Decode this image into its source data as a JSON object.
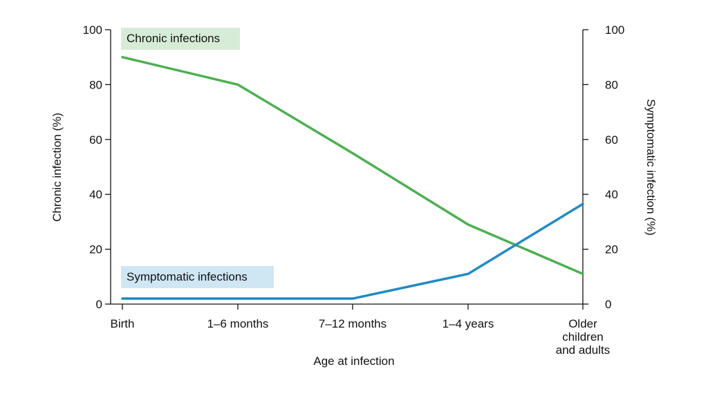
{
  "chart_data": {
    "type": "line",
    "categories": [
      "Birth",
      "1–6 months",
      "7–12 months",
      "1–4 years",
      "Older children and adults"
    ],
    "category_lines": [
      [
        "Birth"
      ],
      [
        "1–6 months"
      ],
      [
        "7–12 months"
      ],
      [
        "1–4 years"
      ],
      [
        "Older",
        "children",
        "and adults"
      ]
    ],
    "xlabel": "Age at infection",
    "ylabel_left": "Chronic infection (%)",
    "ylabel_right": "Symptomatic infection (%)",
    "ylim": [
      0,
      100
    ],
    "yticks": [
      0,
      20,
      40,
      60,
      80,
      100
    ],
    "grid": false,
    "series": [
      {
        "name": "Chronic infections",
        "axis": "left",
        "color": "#4caf50",
        "label_bg": "#d7ecd6",
        "label_position": "top-left",
        "values": [
          90,
          80,
          55,
          29,
          11
        ]
      },
      {
        "name": "Symptomatic infections",
        "axis": "right",
        "color": "#1f8ac4",
        "label_bg": "#cfe6f3",
        "label_position": "bottom-left",
        "values": [
          2,
          2,
          2,
          11,
          36.5
        ]
      }
    ]
  }
}
